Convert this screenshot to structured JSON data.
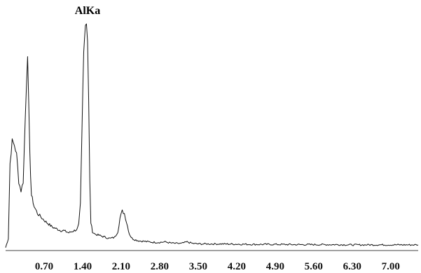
{
  "chart_data": {
    "type": "line",
    "title": "",
    "xlabel": "",
    "ylabel": "",
    "xlim": [
      0.0,
      7.5
    ],
    "ylim": [
      0,
      100
    ],
    "grid": false,
    "legend": "none",
    "x_ticks": [
      {
        "value": 0.7,
        "label": "0.70"
      },
      {
        "value": 1.4,
        "label": "1.40"
      },
      {
        "value": 2.1,
        "label": "2.10"
      },
      {
        "value": 2.8,
        "label": "2.80"
      },
      {
        "value": 3.5,
        "label": "3.50"
      },
      {
        "value": 4.2,
        "label": "4.20"
      },
      {
        "value": 4.9,
        "label": "4.90"
      },
      {
        "value": 5.6,
        "label": "5.60"
      },
      {
        "value": 6.3,
        "label": "6.30"
      },
      {
        "value": 7.0,
        "label": "7.00"
      }
    ],
    "annotations": [
      {
        "text": "AlKa",
        "x": 1.49,
        "y": 100
      }
    ],
    "series": [
      {
        "x": [
          0.0,
          0.05,
          0.08,
          0.12,
          0.16,
          0.2,
          0.24,
          0.28,
          0.32,
          0.36,
          0.4,
          0.44,
          0.47,
          0.5,
          0.52,
          0.54,
          0.56,
          0.58,
          0.62,
          0.66,
          0.7,
          0.75,
          0.8,
          0.85,
          0.9,
          0.95,
          1.0,
          1.05,
          1.1,
          1.15,
          1.2,
          1.25,
          1.3,
          1.33,
          1.36,
          1.39,
          1.42,
          1.45,
          1.47,
          1.49,
          1.51,
          1.53,
          1.55,
          1.58,
          1.62,
          1.68,
          1.75,
          1.82,
          1.9,
          1.98,
          2.04,
          2.08,
          2.12,
          2.16,
          2.2,
          2.25,
          2.3,
          2.35,
          2.42,
          2.5,
          2.6,
          2.7,
          2.8,
          2.9,
          3.0,
          3.1,
          3.2,
          3.3,
          3.4,
          3.5,
          3.7,
          3.9,
          4.2,
          4.5,
          4.9,
          5.3,
          5.6,
          6.0,
          6.3,
          6.7,
          7.0,
          7.3,
          7.5
        ],
        "values": [
          1,
          5,
          38,
          48,
          46,
          42,
          30,
          26,
          30,
          60,
          86,
          42,
          24,
          21,
          19,
          18,
          17,
          16,
          15,
          14,
          13,
          12,
          11,
          10,
          9.5,
          9,
          8.5,
          8.5,
          8,
          7.5,
          8,
          8.5,
          9,
          11,
          20,
          55,
          88,
          99,
          100,
          92,
          65,
          30,
          12,
          8,
          7,
          6.5,
          6,
          5.5,
          5,
          5.5,
          8,
          14,
          17,
          16,
          12,
          7,
          5,
          4.5,
          4,
          3.8,
          3.5,
          3.3,
          3.3,
          3.5,
          3,
          2.8,
          2.8,
          3.5,
          2.8,
          2.6,
          2.6,
          2.6,
          2.5,
          2.4,
          2.4,
          2.3,
          2.3,
          2.3,
          2.2,
          2.2,
          2.2,
          2.2,
          2.2
        ]
      }
    ]
  }
}
